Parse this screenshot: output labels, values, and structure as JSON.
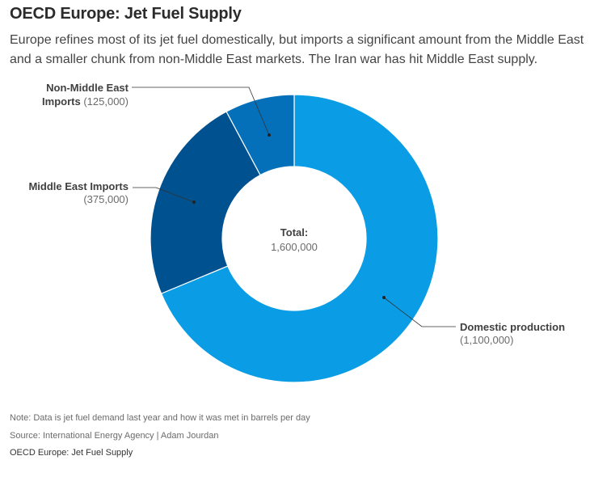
{
  "header": {
    "title": "OECD Europe: Jet Fuel Supply",
    "subtitle": "Europe refines most of its jet fuel domestically, but imports a significant amount from the Middle East and a smaller chunk from non-Middle East markets. The Iran war has hit Middle East supply."
  },
  "chart_data": {
    "type": "pie",
    "style": "donut",
    "title": "OECD Europe: Jet Fuel Supply",
    "unit": "barrels per day",
    "slices": [
      {
        "name": "Domestic production",
        "value": 1100000,
        "display": "(1,100,000)",
        "color": "#0a9de5"
      },
      {
        "name": "Middle East Imports",
        "value": 375000,
        "display": "(375,000)",
        "color": "#00518f"
      },
      {
        "name": "Non-Middle East Imports",
        "value": 125000,
        "display": "(125,000)",
        "color": "#0570ba"
      }
    ],
    "center_label": "Total:",
    "center_value": "1,600,000"
  },
  "footer": {
    "note": "Note: Data is jet fuel demand last year and how it was met in barrels per day",
    "source": "Source: International Energy Agency | Adam Jourdan",
    "caption": "OECD Europe: Jet Fuel Supply"
  }
}
